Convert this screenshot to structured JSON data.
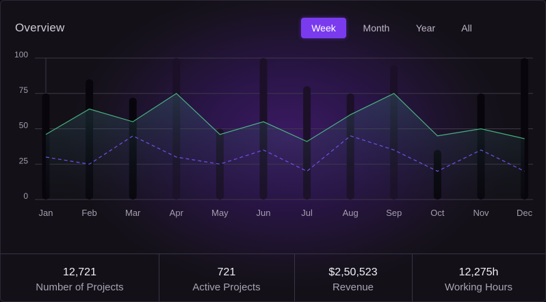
{
  "header": {
    "title": "Overview"
  },
  "tabs": [
    {
      "label": "Week",
      "active": true
    },
    {
      "label": "Month",
      "active": false
    },
    {
      "label": "Year",
      "active": false
    },
    {
      "label": "All",
      "active": false
    }
  ],
  "chart_data": {
    "type": "bar",
    "categories": [
      "Jan",
      "Feb",
      "Mar",
      "Apr",
      "May",
      "Jun",
      "Jul",
      "Aug",
      "Sep",
      "Oct",
      "Nov",
      "Dec"
    ],
    "ylim": [
      0,
      100
    ],
    "yticks": [
      0,
      25,
      50,
      75,
      100
    ],
    "grid": true,
    "series": [
      {
        "type": "bar",
        "values": [
          75,
          85,
          72,
          100,
          50,
          100,
          80,
          75,
          95,
          35,
          75,
          100
        ]
      },
      {
        "type": "area",
        "values": [
          46,
          64,
          55,
          75,
          46,
          55,
          41,
          60,
          75,
          45,
          50,
          43
        ]
      },
      {
        "type": "line-dashed",
        "values": [
          30,
          25,
          45,
          30,
          25,
          35,
          20,
          45,
          35,
          20,
          35,
          20
        ]
      }
    ]
  },
  "stats": [
    {
      "value": "12,721",
      "label": "Number of Projects"
    },
    {
      "value": "721",
      "label": "Active Projects"
    },
    {
      "value": "$2,50,523",
      "label": "Revenue"
    },
    {
      "value": "12,275h",
      "label": "Working Hours"
    }
  ],
  "colors": {
    "accent": "#7a3bef",
    "area_line": "#4fd08f",
    "dashed_line": "#6a4fe0",
    "bar_dark": "#08060c",
    "bar_mid": "#1c1028"
  }
}
